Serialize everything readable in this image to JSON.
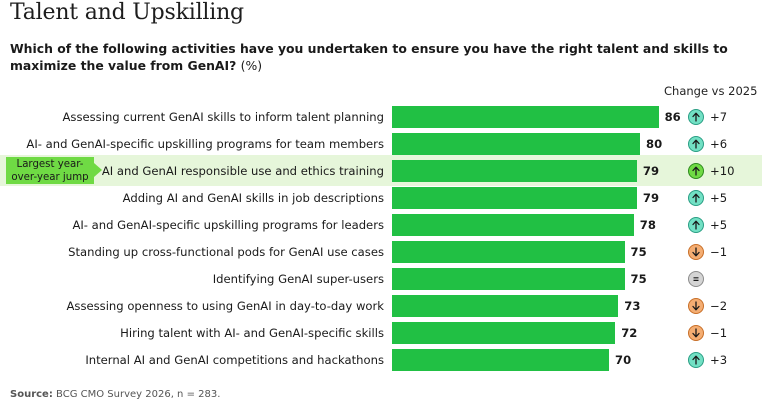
{
  "title": "Talent and Upskilling",
  "question": "Which of the following activities have you undertaken to ensure you have the right talent and skills to maximize the value from GenAI?",
  "question_unit": "(%)",
  "change_header": "Change vs 2025",
  "callout": "Largest year-over-year jump",
  "source_label": "Source:",
  "source_text": "BCG CMO Survey 2026, n = 283.",
  "colors": {
    "bar": "#21c044",
    "highlight": "#6fda44",
    "up": "#72e0c4",
    "down": "#f4ad72",
    "flat": "#d4d4d4"
  },
  "chart_data": {
    "type": "bar",
    "orientation": "horizontal",
    "categories": [
      "Assessing current GenAI skills to inform talent planning",
      "AI- and GenAI-specific upskilling programs for team members",
      "AI and GenAI responsible use and ethics training",
      "Adding AI and GenAI skills in job descriptions",
      "AI- and GenAI-specific upskilling programs for leaders",
      "Standing up cross-functional pods for GenAI use cases",
      "Identifying GenAI super-users",
      "Assessing openness to using GenAI in day-to-day work",
      "Hiring talent with AI- and GenAI-specific skills",
      "Internal AI and GenAI competitions and hackathons"
    ],
    "values": [
      86,
      80,
      79,
      79,
      78,
      75,
      75,
      73,
      72,
      70
    ],
    "change_vs_2025": [
      "+7",
      "+6",
      "+10",
      "+5",
      "+5",
      "−1",
      "",
      "−2",
      "−1",
      "+3"
    ],
    "change_direction": [
      "up",
      "up",
      "up",
      "up",
      "up",
      "down",
      "flat",
      "down",
      "down",
      "up"
    ],
    "highlighted_index": 2
  }
}
